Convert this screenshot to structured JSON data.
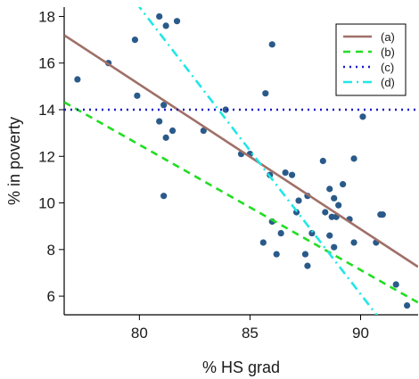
{
  "chart_data": {
    "type": "scatter",
    "xlabel": "% HS grad",
    "ylabel": "% in poverty",
    "xlim": [
      76.6,
      92.6
    ],
    "ylim": [
      5.2,
      18.4
    ],
    "x_ticks": [
      80,
      85,
      90
    ],
    "y_ticks": [
      6,
      8,
      10,
      12,
      14,
      16,
      18
    ],
    "grid": false,
    "legend_position": "top-right",
    "point_color": "#2a5a8a",
    "points": [
      [
        77.2,
        15.3
      ],
      [
        78.6,
        16.0
      ],
      [
        79.8,
        17.0
      ],
      [
        79.9,
        14.6
      ],
      [
        80.9,
        18.0
      ],
      [
        81.2,
        17.6
      ],
      [
        81.7,
        17.8
      ],
      [
        80.9,
        13.5
      ],
      [
        81.1,
        14.2
      ],
      [
        81.2,
        12.8
      ],
      [
        81.5,
        13.1
      ],
      [
        81.1,
        10.3
      ],
      [
        82.9,
        13.1
      ],
      [
        83.9,
        14.0
      ],
      [
        84.6,
        12.1
      ],
      [
        85.0,
        12.1
      ],
      [
        85.7,
        14.7
      ],
      [
        86.0,
        16.8
      ],
      [
        85.9,
        11.2
      ],
      [
        86.6,
        11.3
      ],
      [
        86.9,
        11.2
      ],
      [
        86.0,
        9.2
      ],
      [
        85.6,
        8.3
      ],
      [
        86.2,
        7.8
      ],
      [
        86.4,
        8.7
      ],
      [
        87.2,
        10.1
      ],
      [
        87.6,
        10.3
      ],
      [
        87.1,
        9.6
      ],
      [
        87.8,
        8.7
      ],
      [
        87.5,
        7.8
      ],
      [
        87.6,
        7.3
      ],
      [
        88.3,
        11.8
      ],
      [
        88.6,
        10.6
      ],
      [
        88.4,
        9.6
      ],
      [
        88.7,
        9.4
      ],
      [
        88.8,
        10.2
      ],
      [
        89.0,
        9.9
      ],
      [
        89.2,
        10.8
      ],
      [
        88.9,
        9.4
      ],
      [
        88.6,
        8.6
      ],
      [
        88.8,
        8.1
      ],
      [
        89.5,
        9.3
      ],
      [
        89.7,
        11.9
      ],
      [
        90.1,
        13.7
      ],
      [
        89.7,
        8.3
      ],
      [
        90.7,
        8.3
      ],
      [
        90.9,
        9.5
      ],
      [
        91.0,
        9.5
      ],
      [
        91.6,
        6.5
      ],
      [
        92.1,
        5.6
      ]
    ],
    "lines": [
      {
        "name": "(a)",
        "color": "#a07068",
        "dash": "solid",
        "intercept": 64.78,
        "slope": -0.6212
      },
      {
        "name": "(b)",
        "color": "#22dd22",
        "dash": "dashed",
        "intercept": 55.48,
        "slope": -0.5373
      },
      {
        "name": "(c)",
        "color": "#1a1acc",
        "dash": "dotted",
        "intercept": 14.0,
        "slope": 0.0
      },
      {
        "name": "(d)",
        "color": "#22e6e6",
        "dash": "dashdot",
        "intercept": 116.95,
        "slope": -1.2318
      }
    ]
  }
}
